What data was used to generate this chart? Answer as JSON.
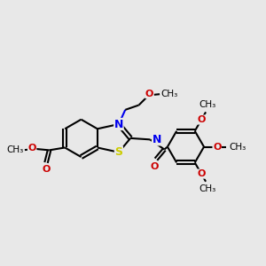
{
  "background_color": "#e8e8e8",
  "bond_color": "black",
  "S_color": "#cccc00",
  "N_color": "#0000ee",
  "O_color": "#cc0000",
  "line_width": 1.5,
  "figsize": [
    3.0,
    3.0
  ],
  "dpi": 100,
  "xlim": [
    0,
    10
  ],
  "ylim": [
    0,
    10
  ]
}
